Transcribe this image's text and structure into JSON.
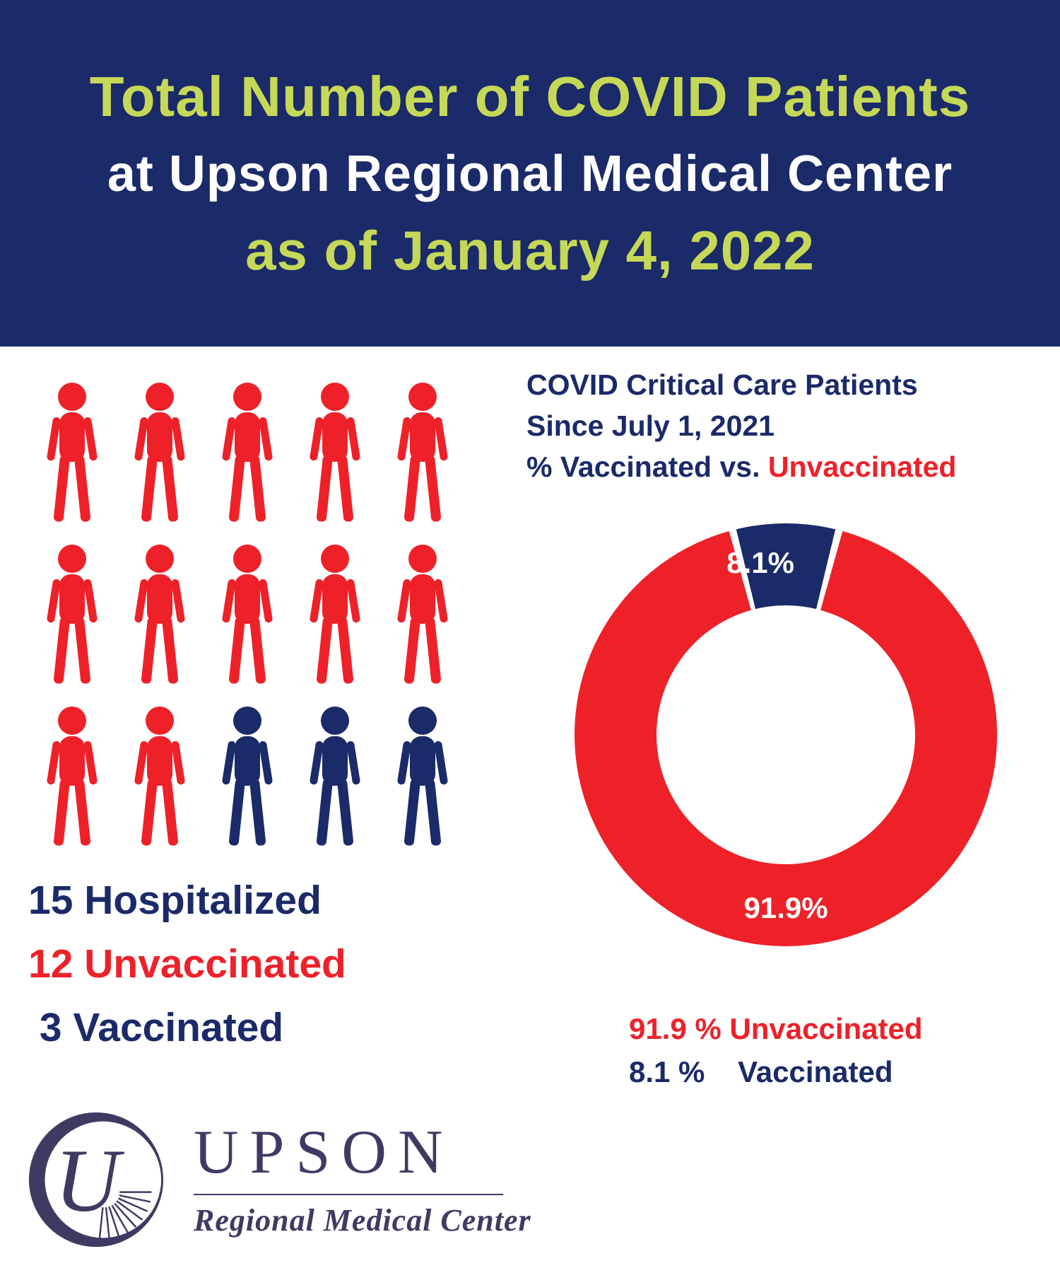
{
  "colors": {
    "navy": "#1b2a68",
    "red": "#ee2129",
    "lime": "#c6d858",
    "white": "#ffffff",
    "logo_navy": "#3e3b63"
  },
  "header": {
    "line1": "Total Number of COVID Patients",
    "line2": "at Upson Regional Medical Center",
    "line3": "as of January 4, 2022"
  },
  "hospitalized": {
    "stats": [
      {
        "text": "15 Hospitalized",
        "color": "#1b2a68"
      },
      {
        "text": "12 Unvaccinated",
        "color": "#ee2129"
      },
      {
        "text": " 3 Vaccinated",
        "color": "#1b2a68"
      }
    ]
  },
  "critical_care": {
    "title_line1": "COVID Critical Care Patients",
    "title_line2": "Since July 1, 2021",
    "title_line3_prefix": "% Vaccinated vs. ",
    "title_line3_highlight": "Unvaccinated",
    "donut_label_vaccinated": "8.1%",
    "donut_label_unvaccinated": "91.9%",
    "legend": [
      {
        "text": "91.9 % Unvaccinated",
        "color": "#ee2129"
      },
      {
        "text": "8.1 %    Vaccinated",
        "color": "#1b2a68"
      }
    ]
  },
  "logo": {
    "name": "UPSON",
    "subtitle": "Regional Medical Center",
    "monogram": "U"
  },
  "chart_data": [
    {
      "type": "pictogram",
      "title": "Total Number of COVID Patients at Upson Regional Medical Center as of January 4, 2022",
      "categories": [
        "Unvaccinated",
        "Vaccinated"
      ],
      "values": [
        12,
        3
      ],
      "total": 15,
      "icon": "person",
      "layout": "3 rows x 5 columns, filled left-to-right top-to-bottom",
      "colors": [
        "#ee2129",
        "#1b2a68"
      ]
    },
    {
      "type": "pie",
      "subtype": "donut",
      "title": "COVID Critical Care Patients Since July 1, 2021 - % Vaccinated vs. Unvaccinated",
      "categories": [
        "Unvaccinated",
        "Vaccinated"
      ],
      "values": [
        91.9,
        8.1
      ],
      "unit": "percent",
      "colors": [
        "#ee2129",
        "#1b2a68"
      ],
      "labels": [
        "91.9%",
        "8.1%"
      ],
      "legend_position": "bottom",
      "vaccinated_segment_position": "top-center"
    }
  ]
}
